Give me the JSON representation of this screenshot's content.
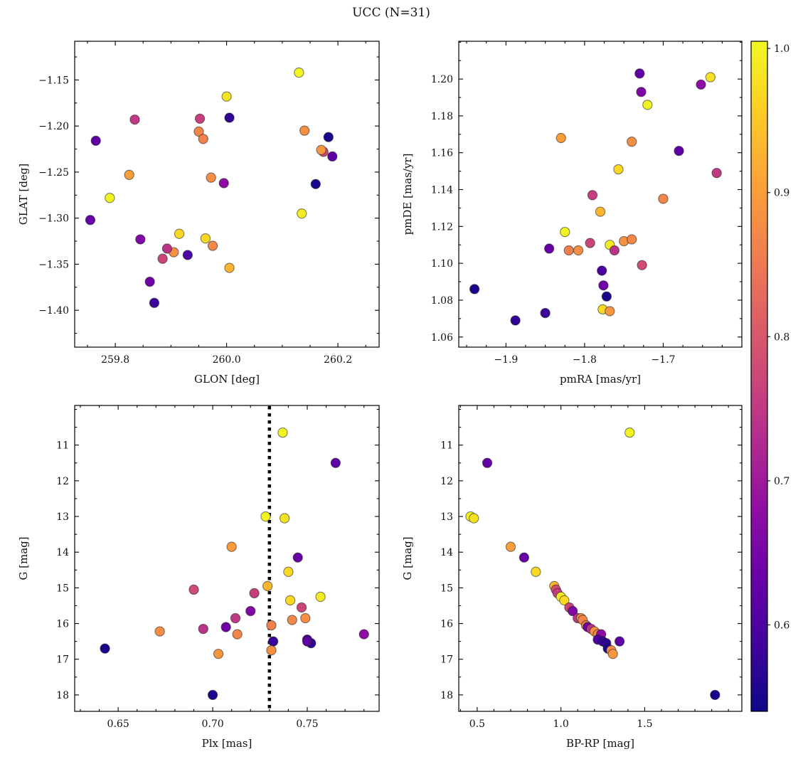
{
  "title": "UCC (N=31)",
  "chart_data": {
    "type": "scatter",
    "title": "UCC (N=31)",
    "n_members": 31,
    "colormap": "plasma",
    "color_field": "prob",
    "color_range": [
      0.54,
      1.005
    ],
    "colorbar": {
      "ticks": [
        0.6,
        0.7,
        0.8,
        0.9,
        1.0
      ],
      "tick_labels": [
        "0.6",
        "0.7",
        "0.8",
        "0.9",
        "1.0"
      ],
      "position": "right"
    },
    "panels": [
      {
        "id": "tl",
        "x": "glon",
        "y": "glat",
        "xlabel": "GLON [deg]",
        "ylabel": "GLAT [deg]",
        "xlim": [
          259.727,
          260.274
        ],
        "ylim": [
          -1.44,
          -1.108
        ],
        "xticks": [
          259.8,
          260.0,
          260.2
        ],
        "xtick_labels": [
          "259.8",
          "260.0",
          "260.2"
        ],
        "yticks": [
          -1.15,
          -1.2,
          -1.25,
          -1.3,
          -1.35,
          -1.4
        ],
        "ytick_labels": [
          "−1.15",
          "−1.20",
          "−1.25",
          "−1.30",
          "−1.35",
          "−1.40"
        ],
        "xminor": 0.05,
        "yminor": 0.025
      },
      {
        "id": "tr",
        "x": "pmra",
        "y": "pmde",
        "xlabel": "pmRA [mas/yr]",
        "ylabel": "pmDE [mas/yr]",
        "xlim": [
          -1.96,
          -1.6
        ],
        "ylim": [
          1.0545,
          1.2205
        ],
        "xticks": [
          -1.9,
          -1.8,
          -1.7
        ],
        "xtick_labels": [
          "−1.9",
          "−1.8",
          "−1.7"
        ],
        "yticks": [
          1.06,
          1.08,
          1.1,
          1.12,
          1.14,
          1.16,
          1.18,
          1.2
        ],
        "ytick_labels": [
          "1.06",
          "1.08",
          "1.10",
          "1.12",
          "1.14",
          "1.16",
          "1.18",
          "1.20"
        ],
        "xminor": 0.025,
        "yminor": 0.01
      },
      {
        "id": "bl",
        "x": "plx",
        "y": "g",
        "xlabel": "Plx [mas]",
        "ylabel": "G [mag]",
        "xlim": [
          0.627,
          0.788
        ],
        "ylim": [
          18.46,
          9.89
        ],
        "xticks": [
          0.65,
          0.7,
          0.75
        ],
        "xtick_labels": [
          "0.65",
          "0.70",
          "0.75"
        ],
        "yticks": [
          11,
          12,
          13,
          14,
          15,
          16,
          17,
          18
        ],
        "ytick_labels": [
          "11",
          "12",
          "13",
          "14",
          "15",
          "16",
          "17",
          "18"
        ],
        "xminor": 0.01,
        "yminor": 0.5,
        "vline": {
          "x": 0.73,
          "style": "dotted",
          "color": "#000000"
        }
      },
      {
        "id": "br",
        "x": "bprp",
        "y": "g",
        "xlabel": "BP-RP [mag]",
        "ylabel": "G [mag]",
        "xlim": [
          0.39,
          2.08
        ],
        "ylim": [
          18.46,
          9.89
        ],
        "xticks": [
          0.5,
          1.0,
          1.5
        ],
        "xtick_labels": [
          "0.5",
          "1.0",
          "1.5"
        ],
        "yticks": [
          11,
          12,
          13,
          14,
          15,
          16,
          17,
          18
        ],
        "ytick_labels": [
          "11",
          "12",
          "13",
          "14",
          "15",
          "16",
          "17",
          "18"
        ],
        "xminor": 0.1,
        "yminor": 0.5
      }
    ],
    "stars": [
      {
        "glon": 260.13,
        "glat": -1.142,
        "pmra": -1.72,
        "pmde": 1.186,
        "plx": 0.737,
        "g": 10.65,
        "bprp": 1.41,
        "prob": 1.0
      },
      {
        "glon": 259.765,
        "glat": -1.216,
        "pmra": -1.73,
        "pmde": 1.203,
        "plx": 0.765,
        "g": 11.5,
        "bprp": 0.56,
        "prob": 0.62
      },
      {
        "glon": 259.79,
        "glat": -1.278,
        "pmra": -1.825,
        "pmde": 1.117,
        "plx": 0.728,
        "g": 13.0,
        "bprp": 0.46,
        "prob": 1.0
      },
      {
        "glon": 260.0,
        "glat": -1.168,
        "pmra": -1.64,
        "pmde": 1.201,
        "plx": 0.738,
        "g": 13.05,
        "bprp": 0.48,
        "prob": 0.98
      },
      {
        "glon": 259.825,
        "glat": -1.253,
        "pmra": -1.83,
        "pmde": 1.168,
        "plx": 0.71,
        "g": 13.85,
        "bprp": 0.7,
        "prob": 0.9
      },
      {
        "glon": 259.755,
        "glat": -1.302,
        "pmra": -1.845,
        "pmde": 1.108,
        "plx": 0.745,
        "g": 14.15,
        "bprp": 0.78,
        "prob": 0.63
      },
      {
        "glon": 259.915,
        "glat": -1.317,
        "pmra": -1.757,
        "pmde": 1.151,
        "plx": 0.74,
        "g": 14.55,
        "bprp": 0.85,
        "prob": 0.97
      },
      {
        "glon": 260.005,
        "glat": -1.354,
        "pmra": -1.78,
        "pmde": 1.128,
        "plx": 0.729,
        "g": 14.95,
        "bprp": 0.96,
        "prob": 0.93
      },
      {
        "glon": 260.174,
        "glat": -1.228,
        "pmra": -1.727,
        "pmde": 1.099,
        "plx": 0.69,
        "g": 15.05,
        "bprp": 0.97,
        "prob": 0.78
      },
      {
        "glon": 259.952,
        "glat": -1.192,
        "pmra": -1.79,
        "pmde": 1.137,
        "plx": 0.722,
        "g": 15.15,
        "bprp": 0.98,
        "prob": 0.76
      },
      {
        "glon": 260.135,
        "glat": -1.295,
        "pmra": -1.768,
        "pmde": 1.11,
        "plx": 0.757,
        "g": 15.25,
        "bprp": 1.0,
        "prob": 0.99
      },
      {
        "glon": 259.962,
        "glat": -1.322,
        "pmra": -1.777,
        "pmde": 1.075,
        "plx": 0.741,
        "g": 15.35,
        "bprp": 1.02,
        "prob": 0.97
      },
      {
        "glon": 259.885,
        "glat": -1.344,
        "pmra": -1.793,
        "pmde": 1.111,
        "plx": 0.747,
        "g": 15.55,
        "bprp": 1.05,
        "prob": 0.77
      },
      {
        "glon": 259.845,
        "glat": -1.323,
        "pmra": -1.728,
        "pmde": 1.193,
        "plx": 0.72,
        "g": 15.65,
        "bprp": 1.07,
        "prob": 0.66
      },
      {
        "glon": 259.835,
        "glat": -1.193,
        "pmra": -1.632,
        "pmde": 1.149,
        "plx": 0.712,
        "g": 15.85,
        "bprp": 1.1,
        "prob": 0.75
      },
      {
        "glon": 259.905,
        "glat": -1.337,
        "pmra": -1.75,
        "pmde": 1.112,
        "plx": 0.749,
        "g": 15.85,
        "bprp": 1.12,
        "prob": 0.88
      },
      {
        "glon": 259.95,
        "glat": -1.206,
        "pmra": -1.74,
        "pmde": 1.113,
        "plx": 0.742,
        "g": 15.9,
        "bprp": 1.13,
        "prob": 0.87
      },
      {
        "glon": 259.958,
        "glat": -1.214,
        "pmra": -1.82,
        "pmde": 1.107,
        "plx": 0.731,
        "g": 16.05,
        "bprp": 1.15,
        "prob": 0.86
      },
      {
        "glon": 259.862,
        "glat": -1.369,
        "pmra": -1.776,
        "pmde": 1.088,
        "plx": 0.707,
        "g": 16.1,
        "bprp": 1.16,
        "prob": 0.64
      },
      {
        "glon": 259.893,
        "glat": -1.333,
        "pmra": -1.762,
        "pmde": 1.107,
        "plx": 0.695,
        "g": 16.15,
        "bprp": 1.18,
        "prob": 0.74
      },
      {
        "glon": 259.972,
        "glat": -1.256,
        "pmra": -1.74,
        "pmde": 1.166,
        "plx": 0.672,
        "g": 16.22,
        "bprp": 1.2,
        "prob": 0.88
      },
      {
        "glon": 259.975,
        "glat": -1.33,
        "pmra": -1.7,
        "pmde": 1.135,
        "plx": 0.713,
        "g": 16.3,
        "bprp": 1.22,
        "prob": 0.87
      },
      {
        "glon": 259.995,
        "glat": -1.262,
        "pmra": -1.652,
        "pmde": 1.197,
        "plx": 0.78,
        "g": 16.3,
        "bprp": 1.24,
        "prob": 0.68
      },
      {
        "glon": 259.93,
        "glat": -1.34,
        "pmra": -1.778,
        "pmde": 1.096,
        "plx": 0.75,
        "g": 16.45,
        "bprp": 1.22,
        "prob": 0.6
      },
      {
        "glon": 259.87,
        "glat": -1.392,
        "pmra": -1.85,
        "pmde": 1.073,
        "plx": 0.732,
        "g": 16.5,
        "bprp": 1.25,
        "prob": 0.58
      },
      {
        "glon": 260.005,
        "glat": -1.191,
        "pmra": -1.888,
        "pmde": 1.069,
        "plx": 0.752,
        "g": 16.55,
        "bprp": 1.27,
        "prob": 0.57
      },
      {
        "glon": 260.19,
        "glat": -1.233,
        "pmra": -1.68,
        "pmde": 1.161,
        "plx": 0.75,
        "g": 16.5,
        "bprp": 1.35,
        "prob": 0.62
      },
      {
        "glon": 260.16,
        "glat": -1.263,
        "pmra": -1.94,
        "pmde": 1.086,
        "plx": 0.643,
        "g": 16.7,
        "bprp": 1.28,
        "prob": 0.55
      },
      {
        "glon": 260.14,
        "glat": -1.205,
        "pmra": -1.808,
        "pmde": 1.107,
        "plx": 0.731,
        "g": 16.75,
        "bprp": 1.3,
        "prob": 0.88
      },
      {
        "glon": 260.17,
        "glat": -1.226,
        "pmra": -1.768,
        "pmde": 1.074,
        "plx": 0.703,
        "g": 16.85,
        "bprp": 1.31,
        "prob": 0.89
      },
      {
        "glon": 260.183,
        "glat": -1.212,
        "pmra": -1.772,
        "pmde": 1.082,
        "plx": 0.7,
        "g": 18.0,
        "bprp": 1.92,
        "prob": 0.55
      }
    ]
  }
}
